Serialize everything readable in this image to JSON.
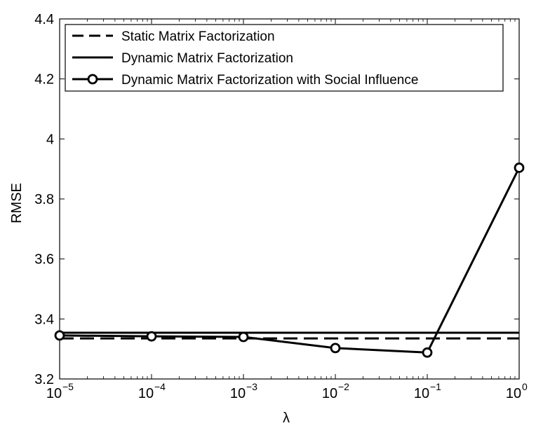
{
  "chart_data": {
    "type": "line",
    "title": "",
    "xlabel": "λ",
    "ylabel": "RMSE",
    "xscale": "log",
    "xlim": [
      1e-05,
      1
    ],
    "ylim": [
      3.2,
      4.4
    ],
    "x_ticks": [
      {
        "value": 1e-05,
        "base": "10",
        "exp": "−5"
      },
      {
        "value": 0.0001,
        "base": "10",
        "exp": "−4"
      },
      {
        "value": 0.001,
        "base": "10",
        "exp": "−3"
      },
      {
        "value": 0.01,
        "base": "10",
        "exp": "−2"
      },
      {
        "value": 0.1,
        "base": "10",
        "exp": "−1"
      },
      {
        "value": 1,
        "base": "10",
        "exp": "0"
      }
    ],
    "y_ticks": [
      {
        "value": 3.2,
        "label": "3.2"
      },
      {
        "value": 3.4,
        "label": "3.4"
      },
      {
        "value": 3.6,
        "label": "3.6"
      },
      {
        "value": 3.8,
        "label": "3.8"
      },
      {
        "value": 4.0,
        "label": "4"
      },
      {
        "value": 4.2,
        "label": "4.2"
      },
      {
        "value": 4.4,
        "label": "4.4"
      }
    ],
    "grid": false,
    "legend_position": "top-left",
    "series": [
      {
        "name": "Static Matrix Factorization",
        "style": "dashed",
        "marker": "none",
        "x": [
          1e-05,
          1
        ],
        "y": [
          3.335,
          3.335
        ]
      },
      {
        "name": "Dynamic Matrix Factorization",
        "style": "solid",
        "marker": "none",
        "x": [
          1e-05,
          1
        ],
        "y": [
          3.354,
          3.354
        ]
      },
      {
        "name": "Dynamic Matrix Factorization with Social Influence",
        "style": "solid",
        "marker": "circle",
        "x": [
          1e-05,
          0.0001,
          0.001,
          0.01,
          0.1,
          1
        ],
        "y": [
          3.345,
          3.342,
          3.34,
          3.303,
          3.288,
          3.904
        ]
      }
    ],
    "colors": {
      "line": "#000000",
      "background": "#ffffff"
    }
  }
}
